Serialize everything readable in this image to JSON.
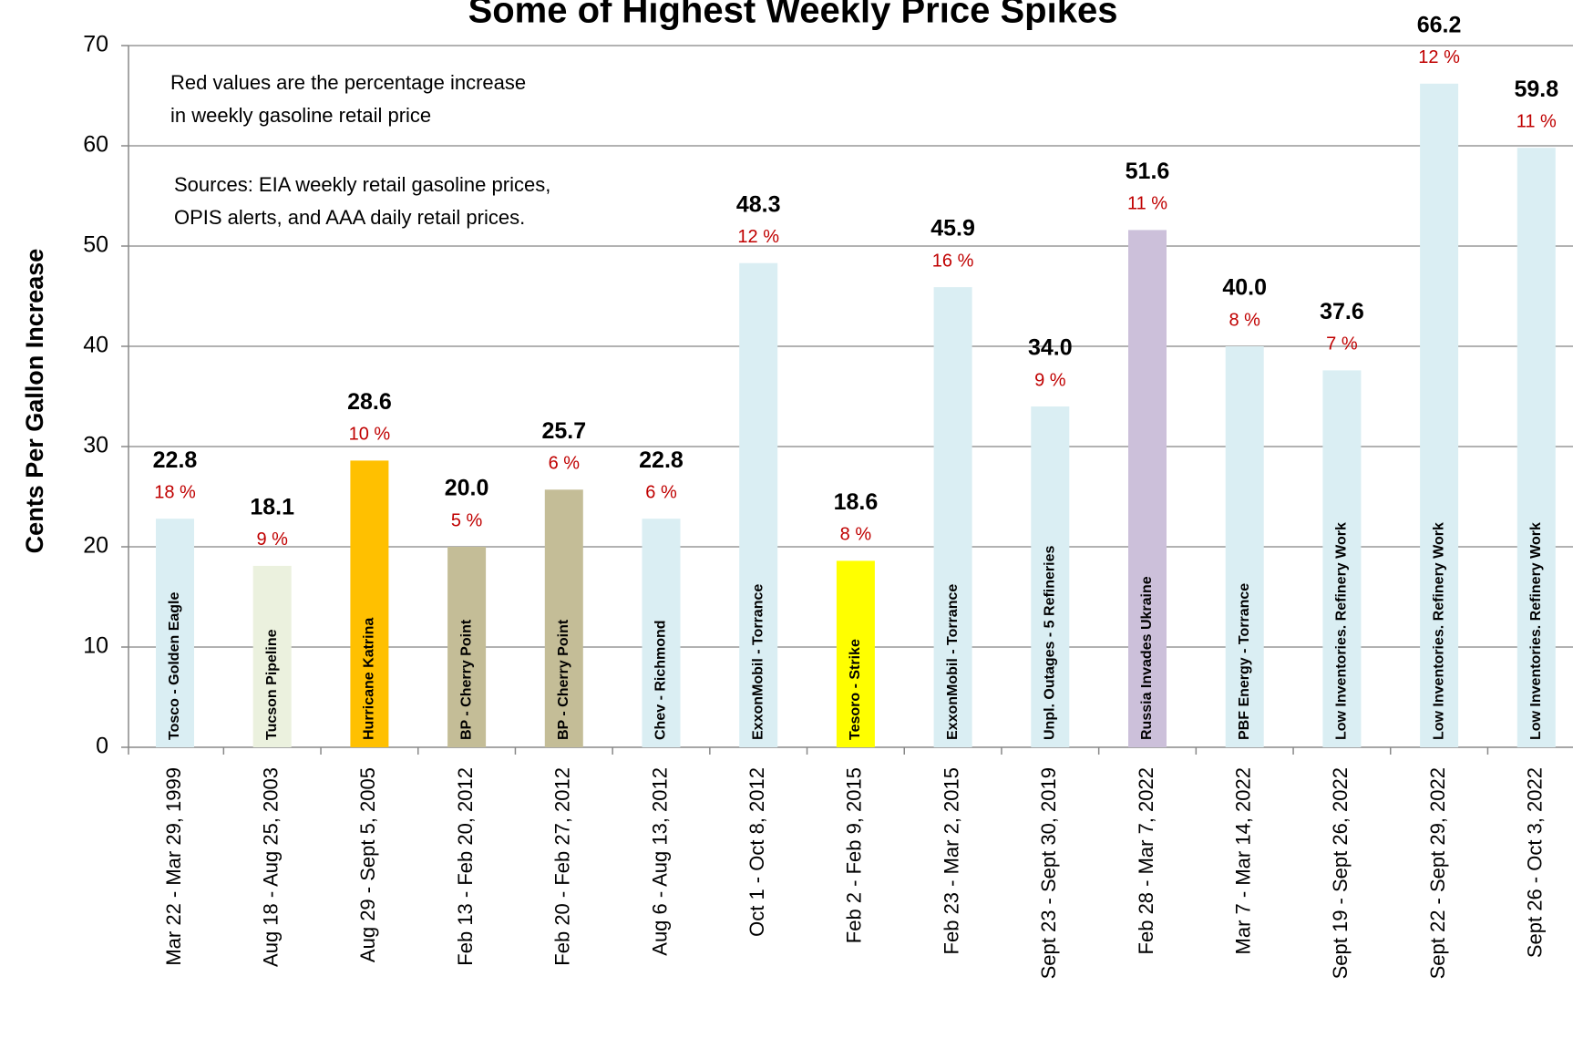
{
  "chart_data": {
    "type": "bar",
    "title": "Some of Highest Weekly Price Spikes",
    "y_label": "Cents Per Gallon Increase",
    "annotations": [
      "Red values are the percentage increase",
      "in weekly gasoline retail price",
      "Sources: EIA weekly retail gasoline prices,",
      "OPIS alerts, and AAA daily retail prices."
    ],
    "categories": [
      "Mar 22 - Mar 29, 1999",
      "Aug 18 - Aug 25, 2003",
      "Aug 29 - Sept 5, 2005",
      "Feb 13 - Feb 20, 2012",
      "Feb 20 - Feb 27, 2012",
      "Aug 6 - Aug 13, 2012",
      "Oct 1 - Oct 8, 2012",
      "Feb 2 - Feb 9, 2015",
      "Feb 23 - Mar 2, 2015",
      "Sept 23 - Sept 30, 2019",
      "Feb 28 - Mar 7, 2022",
      "Mar 7 - Mar 14, 2022",
      "Sept 19 - Sept 26, 2022",
      "Sept 22 - Sept 29, 2022",
      "Sept 26 - Oct 3, 2022"
    ],
    "values": [
      22.8,
      18.1,
      28.6,
      20.0,
      25.7,
      22.8,
      48.3,
      18.6,
      45.9,
      34.0,
      51.6,
      40.0,
      37.6,
      66.2,
      59.8
    ],
    "value_labels": [
      "22.8",
      "18.1",
      "28.6",
      "20.0",
      "25.7",
      "22.8",
      "48.3",
      "18.6",
      "45.9",
      "34.0",
      "51.6",
      "40.0",
      "37.6",
      "66.2",
      "59.8"
    ],
    "percent_values": [
      18,
      9,
      10,
      5,
      6,
      6,
      12,
      8,
      16,
      9,
      11,
      8,
      7,
      12,
      11
    ],
    "percent_labels": [
      "18 %",
      "9 %",
      "10 %",
      "5 %",
      "6 %",
      "6 %",
      "12 %",
      "8 %",
      "16 %",
      "9 %",
      "11 %",
      "8 %",
      "7 %",
      "12 %",
      "11 %"
    ],
    "bar_labels": [
      "Tosco - Golden Eagle",
      "Tucson Pipeline",
      "Hurricane Katrina",
      "BP - Cherry Point",
      "BP - Cherry Point",
      "Chev - Richmond",
      "ExxonMobil - Torrance",
      "Tesoro - Strike",
      "ExxonMobil - Torrance",
      "Unpl. Outages - 5 Refineries",
      "Russia Invades Ukraine",
      "PBF Energy - Torrance",
      "Low Inventories. Refinery Work",
      "Low Inventories. Refinery Work",
      "Low Inventories. Refinery Work"
    ],
    "colors": [
      "#daeef3",
      "#ebf1de",
      "#ffc000",
      "#c4bd97",
      "#c4bd97",
      "#daeef3",
      "#daeef3",
      "#ffff00",
      "#daeef3",
      "#daeef3",
      "#ccc0da",
      "#daeef3",
      "#daeef3",
      "#daeef3",
      "#daeef3"
    ],
    "percent_color": "#c00000",
    "ylim": [
      0,
      70
    ],
    "yticks": [
      0,
      10,
      20,
      30,
      40,
      50,
      60,
      70
    ],
    "grid": true
  }
}
